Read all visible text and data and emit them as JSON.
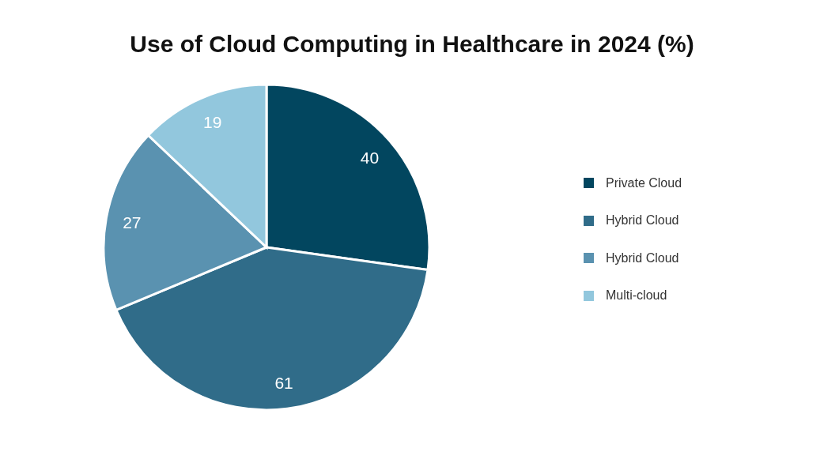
{
  "chart_data": {
    "type": "pie",
    "title": "Use of Cloud Computing in Healthcare in 2024 (%)",
    "categories": [
      "Private Cloud",
      "Hybrid Cloud",
      "Hybrid Cloud",
      "Multi-cloud"
    ],
    "values": [
      40,
      61,
      27,
      19
    ],
    "colors": [
      "#02465f",
      "#306c89",
      "#5a92b0",
      "#92c7dd"
    ],
    "data_labels": true,
    "legend": "right"
  }
}
